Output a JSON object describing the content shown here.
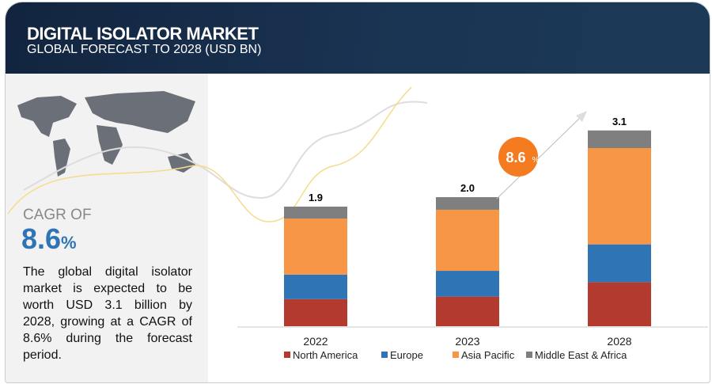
{
  "header": {
    "title": "DIGITAL ISOLATOR MARKET",
    "subtitle": "GLOBAL FORECAST TO 2028 (USD BN)"
  },
  "sidebar": {
    "cagr_label": "CAGR OF",
    "cagr_value": "8.6",
    "cagr_unit": "%",
    "description": "The global digital isolator market is expected to be worth USD 3.1 billion by 2028, growing at a CAGR of 8.6% during the forecast period."
  },
  "chart_data": {
    "type": "bar",
    "stacked": true,
    "categories": [
      "2022",
      "2023",
      "2028"
    ],
    "totals": [
      "1.9",
      "2.0",
      "3.1"
    ],
    "series": [
      {
        "name": "North America",
        "color": "#b33a2f",
        "values": [
          0.43,
          0.47,
          0.7
        ]
      },
      {
        "name": "Europe",
        "color": "#2f75b5",
        "values": [
          0.39,
          0.41,
          0.6
        ]
      },
      {
        "name": "Asia Pacific",
        "color": "#f79646",
        "values": [
          0.89,
          0.97,
          1.53
        ]
      },
      {
        "name": "Middle East & Africa",
        "color": "#7f7f7f",
        "values": [
          0.19,
          0.2,
          0.28
        ]
      }
    ],
    "annotation": {
      "cagr": "8.6",
      "unit": "%"
    },
    "title": "",
    "xlabel": "",
    "ylabel": "",
    "ylim": [
      0,
      3.5
    ],
    "legend": "bottom"
  }
}
